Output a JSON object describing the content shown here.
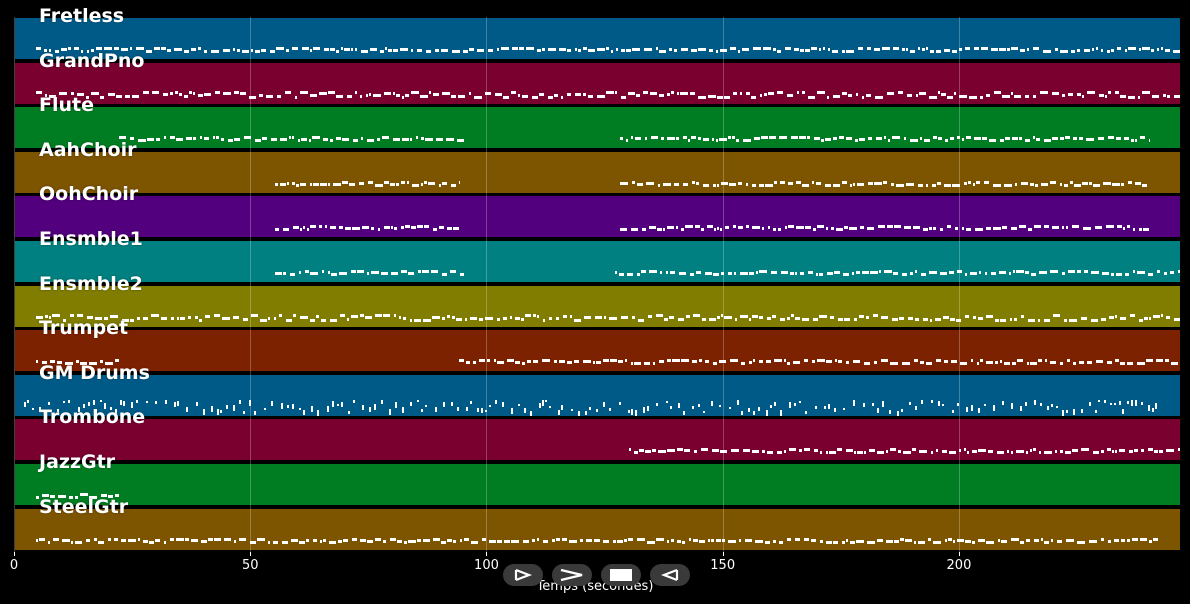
{
  "xlabel": "Temps (secondes)",
  "x_ticks": [
    0,
    50,
    100,
    150,
    200
  ],
  "x_range": [
    0,
    247
  ],
  "tracks": [
    {
      "name": "Fretless",
      "color": "#005a87"
    },
    {
      "name": "GrandPno",
      "color": "#7a0030"
    },
    {
      "name": "Flute",
      "color": "#007d22"
    },
    {
      "name": "AahChoir",
      "color": "#7d5400"
    },
    {
      "name": "OohChoir",
      "color": "#52007d"
    },
    {
      "name": "Ensmble1",
      "color": "#008080"
    },
    {
      "name": "Ensmble2",
      "color": "#807d00"
    },
    {
      "name": "Trumpet",
      "color": "#7d2200"
    },
    {
      "name": "GM Drums",
      "color": "#005a87"
    },
    {
      "name": "Trombone",
      "color": "#7a0030"
    },
    {
      "name": "JazzGtr",
      "color": "#007d22"
    },
    {
      "name": "SteelGtr",
      "color": "#7d5400"
    }
  ],
  "activity": [
    [
      [
        4.5,
        247
      ]
    ],
    [
      [
        4.5,
        247
      ]
    ],
    [
      [
        22,
        95
      ],
      [
        128,
        240
      ]
    ],
    [
      [
        55,
        94
      ],
      [
        128,
        240
      ]
    ],
    [
      [
        55,
        94
      ],
      [
        128,
        240
      ]
    ],
    [
      [
        55,
        95
      ],
      [
        127,
        247
      ]
    ],
    [
      [
        4.5,
        247
      ]
    ],
    [
      [
        4.5,
        22
      ],
      [
        94,
        247
      ]
    ],
    [
      [
        2,
        242
      ]
    ],
    [
      [
        130,
        247
      ]
    ],
    [
      [
        4.5,
        22
      ]
    ],
    [
      [
        4.5,
        242
      ]
    ]
  ],
  "controls": [
    {
      "name": "play-button",
      "icon": "play-icon"
    },
    {
      "name": "fast-forward-button",
      "icon": "fast-forward-icon"
    },
    {
      "name": "stop-button",
      "icon": "stop-icon"
    },
    {
      "name": "rewind-button",
      "icon": "rewind-icon"
    }
  ]
}
